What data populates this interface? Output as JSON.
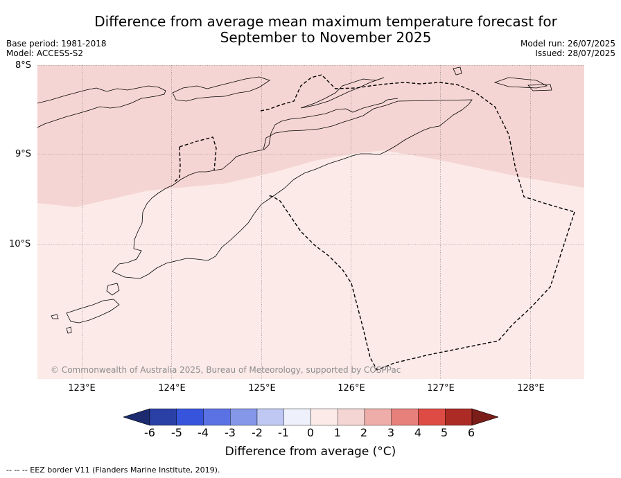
{
  "title": {
    "line1": "Difference from average mean maximum temperature forecast for",
    "line2": "September to November 2025"
  },
  "meta_left": {
    "base_period": "Base period: 1981-2018",
    "model": "Model: ACCESS-S2"
  },
  "meta_right": {
    "model_run": "Model run: 26/07/2025",
    "issued": "Issued: 28/07/2025"
  },
  "axes": {
    "lat_labels": [
      "8°S",
      "9°S",
      "10°S"
    ],
    "lon_labels": [
      "123°E",
      "124°E",
      "125°E",
      "126°E",
      "127°E",
      "128°E"
    ]
  },
  "map_layers": {
    "anomaly_0_to_1_color": "#fbeae8",
    "anomaly_1_to_2_color": "#f5d5d3",
    "border_style": "dashed EEZ border"
  },
  "copyright": "© Commonwealth of Australia 2025, Bureau of Meteorology, supported by COSPPac",
  "colorbar": {
    "label": "Difference from average (°C)",
    "ticks": [
      "-6",
      "-5",
      "-4",
      "-3",
      "-2",
      "-1",
      "0",
      "1",
      "2",
      "3",
      "4",
      "5",
      "6"
    ],
    "colors": [
      "#2a40a6",
      "#3755dc",
      "#5a72e3",
      "#8497e9",
      "#bfc8f3",
      "#eef0fc",
      "#fbeae8",
      "#f5d5d3",
      "#eeada8",
      "#e7807b",
      "#de4b44",
      "#ac2c25"
    ],
    "under_color": "#1c2a70",
    "over_color": "#7b1d19"
  },
  "footer": "--  --  -- EEZ border V11 (Flanders Marine Institute, 2019)."
}
